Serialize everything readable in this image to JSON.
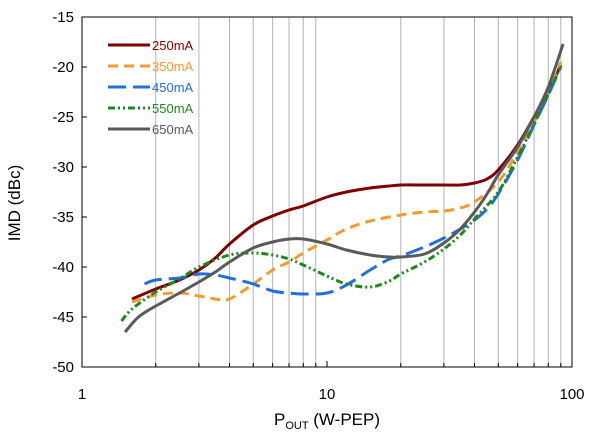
{
  "chart_data": {
    "type": "line",
    "title": "",
    "xlabel_main": "P",
    "xlabel_sub": "OUT",
    "xlabel_rest": " (W-PEP)",
    "ylabel": "IMD (dBc)",
    "x_scale": "log",
    "xlim": [
      1,
      100
    ],
    "ylim": [
      -50,
      -15
    ],
    "x_tick_labels": [
      "1",
      "10",
      "100"
    ],
    "x_tick_values": [
      1,
      10,
      100
    ],
    "y_tick_values": [
      -15,
      -20,
      -25,
      -30,
      -35,
      -40,
      -45,
      -50
    ],
    "y_tick_labels": [
      "-15",
      "-20",
      "-25",
      "-30",
      "-35",
      "-40",
      "-45",
      "-50"
    ],
    "grid": "vertical minor (log decades)",
    "legend_position": "top-left",
    "series": [
      {
        "name": "250mA",
        "color": "#800000",
        "dash": "solid",
        "x": [
          1.6,
          2,
          2.5,
          3,
          3.5,
          4,
          5,
          6,
          7,
          8,
          10,
          12,
          15,
          18,
          20,
          25,
          30,
          35,
          40,
          45,
          50,
          60,
          70,
          80,
          90
        ],
        "y": [
          -43.2,
          -42.2,
          -41.3,
          -40.3,
          -39.1,
          -37.7,
          -35.8,
          -34.9,
          -34.3,
          -33.9,
          -33.0,
          -32.5,
          -32.1,
          -31.9,
          -31.8,
          -31.8,
          -31.8,
          -31.8,
          -31.6,
          -31.2,
          -30.3,
          -27.8,
          -25.0,
          -22.5,
          -19.8
        ]
      },
      {
        "name": "350mA",
        "color": "#f59a2c",
        "dash": "10,6",
        "x": [
          1.6,
          2,
          2.5,
          3,
          3.5,
          4,
          5,
          6,
          7,
          8,
          10,
          12,
          15,
          20,
          25,
          30,
          35,
          40,
          50,
          60,
          70,
          80,
          90
        ],
        "y": [
          -43.5,
          -42.8,
          -42.6,
          -42.9,
          -43.2,
          -43.2,
          -41.7,
          -40.3,
          -39.5,
          -38.6,
          -37.3,
          -36.2,
          -35.4,
          -34.8,
          -34.5,
          -34.4,
          -34.1,
          -33.5,
          -31.5,
          -28.5,
          -25.5,
          -22.5,
          -19.5
        ]
      },
      {
        "name": "450mA",
        "color": "#1f6fe0",
        "dash": "18,7",
        "x": [
          1.8,
          2,
          2.5,
          3,
          3.5,
          4,
          5,
          6,
          7,
          8,
          10,
          12,
          15,
          18,
          20,
          25,
          30,
          35,
          40,
          45,
          50,
          60,
          70,
          80,
          90
        ],
        "y": [
          -41.7,
          -41.3,
          -41.1,
          -40.7,
          -40.8,
          -41.1,
          -41.7,
          -42.4,
          -42.6,
          -42.7,
          -42.6,
          -41.8,
          -40.3,
          -39.2,
          -38.9,
          -38.0,
          -37.1,
          -36.2,
          -35.3,
          -34.2,
          -32.7,
          -29.3,
          -25.8,
          -22.8,
          -20.0
        ]
      },
      {
        "name": "550mA",
        "color": "#1a8a1a",
        "dash": "7,3,2,3,2,3",
        "x": [
          1.45,
          1.6,
          2,
          2.5,
          3,
          4,
          5,
          6,
          7,
          8,
          10,
          12,
          15,
          18,
          20,
          25,
          30,
          35,
          40,
          50,
          60,
          70,
          80,
          90
        ],
        "y": [
          -45.4,
          -44.2,
          -42.5,
          -41.2,
          -40.0,
          -38.8,
          -38.6,
          -38.8,
          -39.2,
          -39.8,
          -40.9,
          -41.7,
          -42.0,
          -41.4,
          -40.7,
          -39.5,
          -38.2,
          -36.8,
          -35.2,
          -32.5,
          -29.0,
          -25.7,
          -22.7,
          -19.9
        ]
      },
      {
        "name": "650mA",
        "color": "#5a5a5a",
        "dash": "solid",
        "x": [
          1.5,
          1.7,
          2,
          2.5,
          3,
          3.5,
          4,
          5,
          6,
          7,
          8,
          10,
          12,
          15,
          18,
          20,
          25,
          30,
          35,
          40,
          45,
          50,
          60,
          70,
          80,
          92
        ],
        "y": [
          -46.5,
          -45.0,
          -43.9,
          -42.6,
          -41.5,
          -40.5,
          -39.5,
          -38.1,
          -37.5,
          -37.2,
          -37.2,
          -37.7,
          -38.3,
          -38.8,
          -39.0,
          -39.0,
          -38.7,
          -37.6,
          -36.2,
          -34.5,
          -32.7,
          -30.8,
          -28.0,
          -25.0,
          -22.0,
          -17.7
        ]
      }
    ]
  }
}
